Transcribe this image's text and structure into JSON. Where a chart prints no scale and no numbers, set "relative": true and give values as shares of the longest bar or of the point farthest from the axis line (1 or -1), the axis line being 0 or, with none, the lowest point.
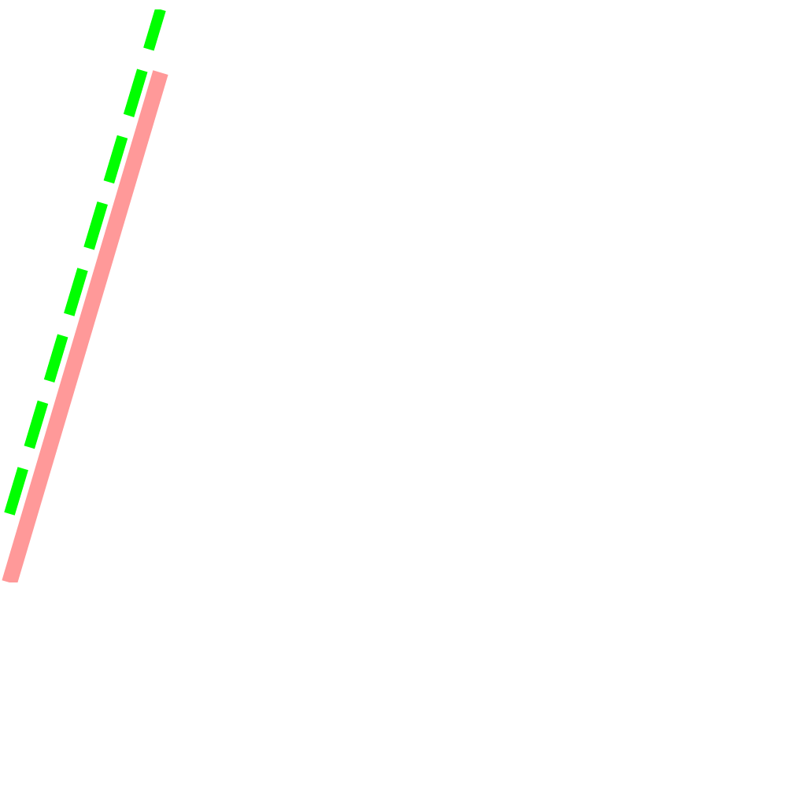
{
  "chart_data": {
    "type": "line",
    "relative": true,
    "categories": [
      null,
      null
    ],
    "series": [
      {
        "color": "#ff9999",
        "line_style": "solid",
        "values": [
          0,
          0.89
        ]
      },
      {
        "color": "#00ff00",
        "line_style": "dashed",
        "values": [
          0.12,
          1
        ]
      }
    ],
    "grid": false,
    "legend": false
  }
}
